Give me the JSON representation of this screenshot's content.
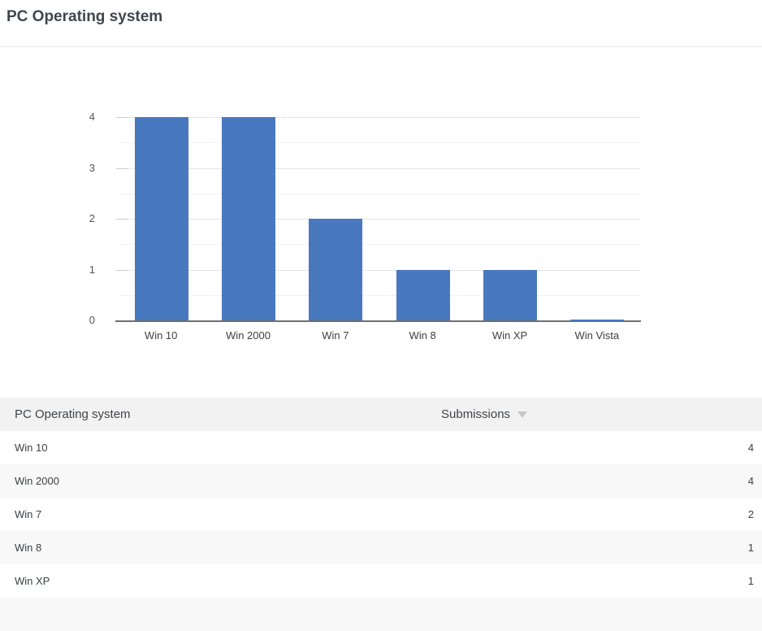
{
  "page": {
    "title": "PC Operating system"
  },
  "chart_data": {
    "type": "bar",
    "title": "PC Operating system",
    "categories": [
      "Win 10",
      "Win 2000",
      "Win 7",
      "Win 8",
      "Win XP",
      "Win Vista"
    ],
    "values": [
      4,
      4,
      2,
      1,
      1,
      0
    ],
    "xlabel": "",
    "ylabel": "",
    "ylim": [
      0,
      4
    ],
    "yticks": [
      0,
      1,
      2,
      3,
      4
    ],
    "minor_gridlines": [
      0.5,
      1.5,
      2.5,
      3.5
    ],
    "grid": "horizontal",
    "legend": "none",
    "bar_color": "#4878be"
  },
  "table": {
    "columns": [
      {
        "label": "PC Operating system",
        "sortable": false
      },
      {
        "label": "Submissions",
        "sortable": true,
        "sort_direction": "desc",
        "sort_icon": "triangle-down"
      }
    ],
    "rows": [
      {
        "os": "Win 10",
        "submissions": "4"
      },
      {
        "os": "Win 2000",
        "submissions": "4"
      },
      {
        "os": "Win 7",
        "submissions": "2"
      },
      {
        "os": "Win 8",
        "submissions": "1"
      },
      {
        "os": "Win XP",
        "submissions": "1"
      }
    ],
    "next_row_partially_visible": true
  },
  "colors": {
    "bar": "#4878be",
    "title_text": "#40464d",
    "body_text": "#3c4043",
    "axis_label": "#50555b",
    "gridline_major": "#e4e4e4",
    "gridline_minor": "#f2f2f2",
    "axis_baseline": "#6f6f6f",
    "table_header_bg": "#f2f2f2",
    "table_alt_row_bg": "#f8f8f8",
    "sort_triangle": "#c3c6c9",
    "divider": "#e9e9e9"
  }
}
